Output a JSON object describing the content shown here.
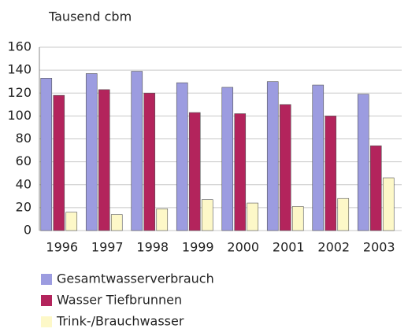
{
  "chart_data": {
    "type": "bar",
    "title": "Tausend cbm",
    "categories": [
      "1996",
      "1997",
      "1998",
      "1999",
      "2000",
      "2001",
      "2002",
      "2003"
    ],
    "series": [
      {
        "name": "Gesamtwasserverbrauch",
        "color": "#9c9ce0",
        "values": [
          133,
          137,
          139,
          129,
          125,
          130,
          127,
          119
        ]
      },
      {
        "name": "Wasser Tiefbrunnen",
        "color": "#b3245c",
        "values": [
          118,
          123,
          120,
          103,
          102,
          110,
          100,
          74
        ]
      },
      {
        "name": "Trink-/Brauchwasser",
        "color": "#fdf8c8",
        "values": [
          16,
          14,
          19,
          27,
          24,
          21,
          28,
          46
        ]
      }
    ],
    "ylim": [
      0,
      160
    ],
    "yticks": [
      0,
      20,
      40,
      60,
      80,
      100,
      120,
      140,
      160
    ],
    "grid": true
  }
}
